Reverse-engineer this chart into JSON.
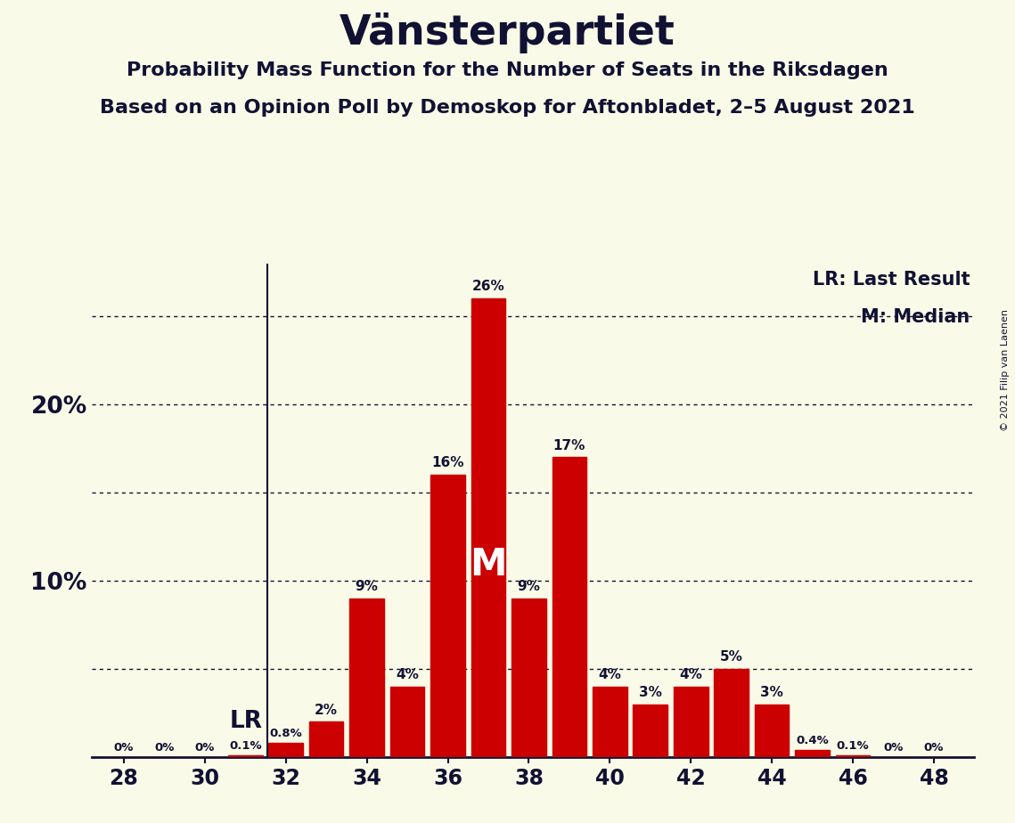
{
  "title": "Vänsterpartiet",
  "subtitle1": "Probability Mass Function for the Number of Seats in the Riksdagen",
  "subtitle2": "Based on an Opinion Poll by Demoskop for Aftonbladet, 2–5 August 2021",
  "copyright": "© 2021 Filip van Laenen",
  "seats": [
    28,
    29,
    30,
    31,
    32,
    33,
    34,
    35,
    36,
    37,
    38,
    39,
    40,
    41,
    42,
    43,
    44,
    45,
    46,
    47,
    48
  ],
  "probabilities": [
    0.0,
    0.0,
    0.0,
    0.1,
    0.8,
    2.0,
    9.0,
    4.0,
    16.0,
    26.0,
    9.0,
    17.0,
    4.0,
    3.0,
    4.0,
    5.0,
    3.0,
    0.4,
    0.1,
    0.0,
    0.0
  ],
  "bar_color": "#cc0000",
  "background_color": "#fafae8",
  "text_color": "#111133",
  "lr_seat": 32,
  "lr_label": "LR",
  "median_seat": 37,
  "median_label": "M",
  "legend_lr": "LR: Last Result",
  "legend_m": "M: Median",
  "ylim_max": 28.0,
  "dotted_lines": [
    5.0,
    10.0,
    15.0,
    20.0,
    25.0
  ],
  "ytick_labels": [
    "10%",
    "20%"
  ],
  "ytick_vals": [
    10,
    20
  ],
  "xticks": [
    28,
    30,
    32,
    34,
    36,
    38,
    40,
    42,
    44,
    46,
    48
  ],
  "bar_width": 0.85
}
